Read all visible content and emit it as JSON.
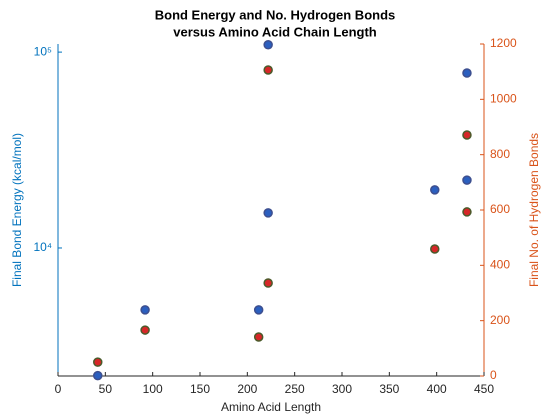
{
  "chart_data": {
    "type": "scatter",
    "title": [
      "Bond Energy and No. Hydrogen Bonds",
      "versus Amino Acid Chain Length"
    ],
    "x_label": "Amino Acid Length",
    "y_label": "Final Bond Energy (kcal/mol)",
    "y2_label": "Final No. of Hydrogen Bonds",
    "xlim": [
      0,
      450
    ],
    "xticks": [
      0,
      50,
      100,
      150,
      200,
      250,
      300,
      350,
      400,
      450
    ],
    "ylim": [
      2220,
      110000
    ],
    "y_log": true,
    "yticks": [
      {
        "value": 10000,
        "label": "10⁴"
      },
      {
        "value": 100000,
        "label": "10⁵"
      }
    ],
    "y2lim": [
      0,
      1200
    ],
    "y2ticks": [
      0,
      200,
      400,
      600,
      800,
      1000,
      1200
    ],
    "y_color": "#0072bd",
    "y2_color": "#d95319",
    "series": [
      {
        "name": "Bond Energy",
        "color": "#2b5fbf",
        "edge": "#3d4f8f",
        "x": [
          42,
          92,
          212,
          222,
          222,
          398,
          432,
          432
        ],
        "values": [
          2230,
          4830,
          4830,
          109000,
          15100,
          19800,
          22200,
          78200
        ]
      },
      {
        "name": "Hydrogen Bonds",
        "axis": "y2",
        "color": "#d62728",
        "edge": "#4a5a2a",
        "x": [
          42,
          92,
          212,
          222,
          222,
          398,
          432,
          432
        ],
        "values": [
          50,
          166,
          141,
          336,
          1106,
          459,
          593,
          871
        ]
      }
    ]
  }
}
